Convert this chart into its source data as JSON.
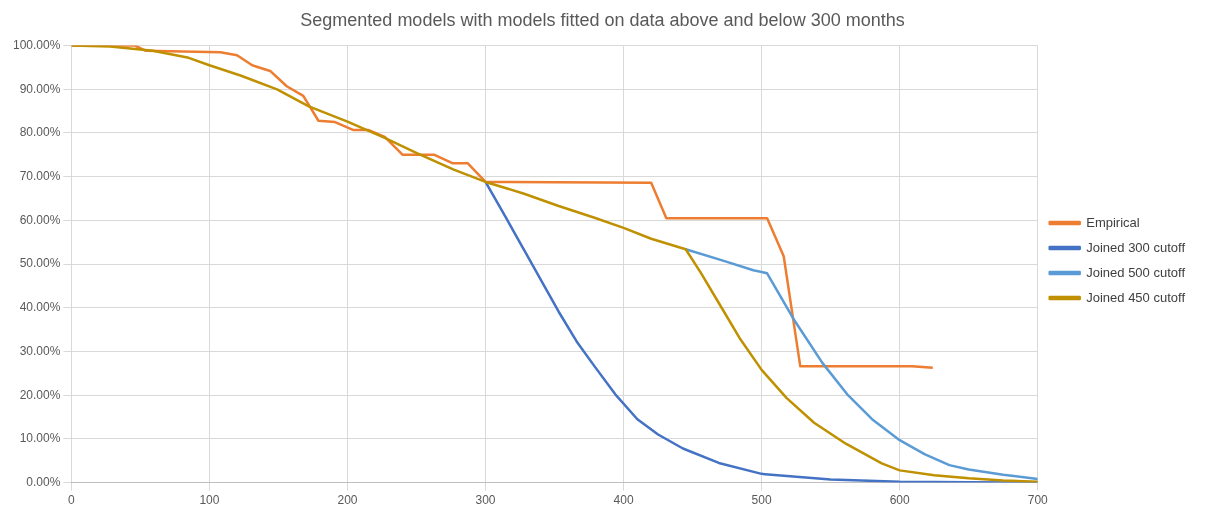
{
  "chart_data": {
    "type": "line",
    "title": "Segmented models with models fitted on data above and below 300 months",
    "xlim": [
      0,
      700
    ],
    "xticks": [
      0,
      100,
      200,
      300,
      400,
      500,
      600,
      700
    ],
    "ylim": [
      0,
      100
    ],
    "yticks": [
      {
        "value": 0,
        "label": "0.00%"
      },
      {
        "value": 10,
        "label": "10.00%"
      },
      {
        "value": 20,
        "label": "20.00%"
      },
      {
        "value": 30,
        "label": "30.00%"
      },
      {
        "value": 40,
        "label": "40.00%"
      },
      {
        "value": 50,
        "label": "50.00%"
      },
      {
        "value": 60,
        "label": "60.00%"
      },
      {
        "value": 70,
        "label": "70.00%"
      },
      {
        "value": 80,
        "label": "80.00%"
      },
      {
        "value": 90,
        "label": "90.00%"
      },
      {
        "value": 100,
        "label": "100.00%"
      }
    ],
    "grid": true,
    "legend": "right",
    "marker": "none",
    "line_style": "solid",
    "series": [
      {
        "name": "Empirical",
        "color": "#ed7d31",
        "x": [
          0,
          46,
          54,
          108,
          120,
          131,
          144,
          156,
          168,
          179,
          191,
          204,
          215,
          227,
          240,
          263,
          276,
          287,
          300,
          420,
          431,
          504,
          516,
          528,
          609,
          624
        ],
        "values": [
          100,
          100,
          98.8,
          98.5,
          97.8,
          95.5,
          94.2,
          90.7,
          88.5,
          82.8,
          82.5,
          80.7,
          80.7,
          79.1,
          75,
          75,
          73.1,
          73.1,
          68.8,
          68.6,
          60.5,
          60.5,
          51.8,
          26.6,
          26.6,
          26.3
        ]
      },
      {
        "name": "Joined 300 cutoff",
        "color": "#4472c4",
        "x": [
          300,
          315,
          328,
          341,
          353,
          366,
          379,
          394,
          410,
          425,
          443,
          469,
          500,
          550,
          600,
          650,
          700
        ],
        "values": [
          68.8,
          60.5,
          53.2,
          45.9,
          39.1,
          32.3,
          26.6,
          20.2,
          14.5,
          11,
          7.8,
          4.5,
          2,
          0.7,
          0.2,
          0.1,
          0
        ]
      },
      {
        "name": "Joined 500 cutoff",
        "color": "#5b9bd5",
        "x": [
          445,
          472,
          494,
          504,
          523,
          544,
          562,
          580,
          600,
          618,
          636,
          650,
          675,
          700
        ],
        "values": [
          53.4,
          50.8,
          48.6,
          47.9,
          37.5,
          27.4,
          20.2,
          14.5,
          9.7,
          6.5,
          4,
          3,
          1.8,
          0.8
        ]
      },
      {
        "name": "Joined 450 cutoff",
        "color": "#bf9000",
        "x": [
          0,
          28,
          59,
          85,
          100,
          123,
          149,
          172,
          200,
          227,
          251,
          277,
          300,
          328,
          353,
          379,
          400,
          420,
          445,
          456,
          469,
          484,
          500,
          518,
          538,
          561,
          587,
          600,
          625,
          650,
          675,
          700
        ],
        "values": [
          100,
          99.8,
          98.8,
          97.2,
          95.5,
          93.1,
          90,
          86.1,
          82.6,
          78.9,
          75.3,
          71.6,
          68.8,
          66.1,
          63.3,
          60.6,
          58.3,
          55.8,
          53.4,
          48,
          41.1,
          33.1,
          25.8,
          19.4,
          13.7,
          8.9,
          4.4,
          2.8,
          1.7,
          1,
          0.5,
          0.2
        ]
      }
    ]
  }
}
